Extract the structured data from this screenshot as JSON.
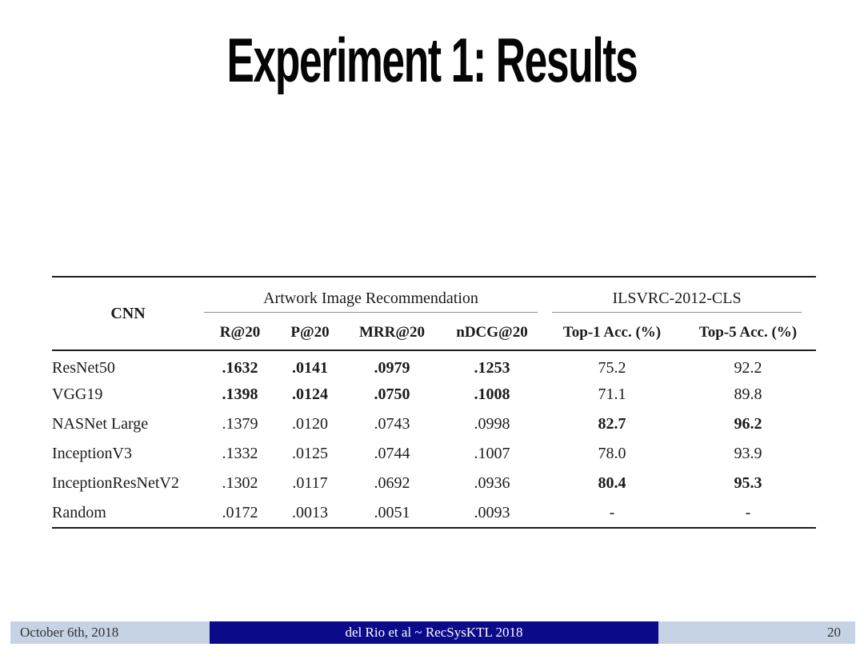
{
  "slide": {
    "title": "Experiment 1: Results",
    "background_color": "#ffffff",
    "footer": {
      "date": "October 6th, 2018",
      "center": "del Rio et al ~ RecSysKTL 2018",
      "page": "20",
      "bar_light_color": "#c5d3e5",
      "bar_dark_color": "#0a0a8b",
      "center_text_color": "#ffffff"
    }
  },
  "chart_data": {
    "type": "table",
    "title": "Experiment 1: Results",
    "group_headers": [
      {
        "label": "",
        "span": 1
      },
      {
        "label": "Artwork Image Recommendation",
        "span": 4
      },
      {
        "label": "ILSVRC-2012-CLS",
        "span": 2
      }
    ],
    "columns": [
      "CNN",
      "R@20",
      "P@20",
      "MRR@20",
      "nDCG@20",
      "Top-1 Acc. (%)",
      "Top-5 Acc. (%)"
    ],
    "rows": [
      {
        "cnn": "ResNet50",
        "cells": [
          {
            "text": ".1632",
            "bold": true
          },
          {
            "text": ".0141",
            "bold": true
          },
          {
            "text": ".0979",
            "bold": true
          },
          {
            "text": ".1253",
            "bold": true
          },
          {
            "text": "75.2",
            "bold": false
          },
          {
            "text": "92.2",
            "bold": false
          }
        ]
      },
      {
        "cnn": "VGG19",
        "cells": [
          {
            "text": ".1398",
            "bold": true
          },
          {
            "text": ".0124",
            "bold": true
          },
          {
            "text": ".0750",
            "bold": true
          },
          {
            "text": ".1008",
            "bold": true
          },
          {
            "text": "71.1",
            "bold": false
          },
          {
            "text": "89.8",
            "bold": false
          }
        ]
      },
      {
        "cnn": "NASNet Large",
        "cells": [
          {
            "text": ".1379",
            "bold": false
          },
          {
            "text": ".0120",
            "bold": false
          },
          {
            "text": ".0743",
            "bold": false
          },
          {
            "text": ".0998",
            "bold": false
          },
          {
            "text": "82.7",
            "bold": true
          },
          {
            "text": "96.2",
            "bold": true
          }
        ]
      },
      {
        "cnn": "InceptionV3",
        "cells": [
          {
            "text": ".1332",
            "bold": false
          },
          {
            "text": ".0125",
            "bold": false
          },
          {
            "text": ".0744",
            "bold": false
          },
          {
            "text": ".1007",
            "bold": false
          },
          {
            "text": "78.0",
            "bold": false
          },
          {
            "text": "93.9",
            "bold": false
          }
        ]
      },
      {
        "cnn": "InceptionResNetV2",
        "cells": [
          {
            "text": ".1302",
            "bold": false
          },
          {
            "text": ".0117",
            "bold": false
          },
          {
            "text": ".0692",
            "bold": false
          },
          {
            "text": ".0936",
            "bold": false
          },
          {
            "text": "80.4",
            "bold": true
          },
          {
            "text": "95.3",
            "bold": true
          }
        ]
      },
      {
        "cnn": "Random",
        "cells": [
          {
            "text": ".0172",
            "bold": false
          },
          {
            "text": ".0013",
            "bold": false
          },
          {
            "text": ".0051",
            "bold": false
          },
          {
            "text": ".0093",
            "bold": false
          },
          {
            "text": "-",
            "bold": false
          },
          {
            "text": "-",
            "bold": false
          }
        ]
      }
    ]
  }
}
